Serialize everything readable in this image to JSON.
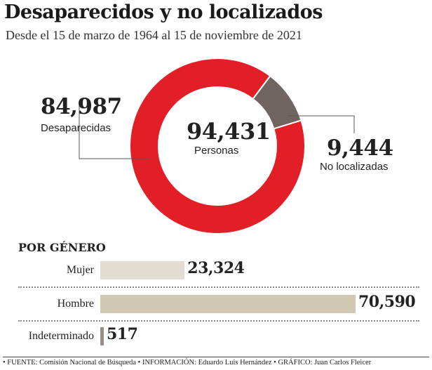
{
  "header": {
    "title": "Desaparecidos y no localizados",
    "subtitle": "Desde el 15 de marzo de 1964 al 15 de noviembre de 2021"
  },
  "donut": {
    "total_value": "94,431",
    "total_label": "Personas",
    "missing_value": "84,987",
    "missing_label": "Desaparecidas",
    "not_located_value": "9,444",
    "not_located_label": "No localizadas"
  },
  "gender": {
    "heading": "POR GÉNERO",
    "rows": [
      {
        "label": "Mujer",
        "value_text": "23,324"
      },
      {
        "label": "Hombre",
        "value_text": "70,590"
      },
      {
        "label": "Indeterminado",
        "value_text": "517"
      }
    ]
  },
  "footer": {
    "source": "• FUENTE: Comisión Nacional de Búsqueda • INFORMACIÓN: Eduardo Luis Hernández • GRÁFICO: Juan Carlos Fleicer"
  },
  "colors": {
    "missing": "#e21f26",
    "not_located": "#6f6460",
    "mujer": "#e2ddd0",
    "hombre": "#d1c8b3",
    "indeterminado": "#9a8e8a"
  },
  "chart_data": [
    {
      "type": "pie",
      "categories": [
        "Desaparecidas",
        "No localizadas"
      ],
      "values": [
        84987,
        9444
      ],
      "total": 94431
    },
    {
      "type": "bar",
      "categories": [
        "Mujer",
        "Hombre",
        "Indeterminado"
      ],
      "values": [
        23324,
        70590,
        517
      ]
    }
  ]
}
